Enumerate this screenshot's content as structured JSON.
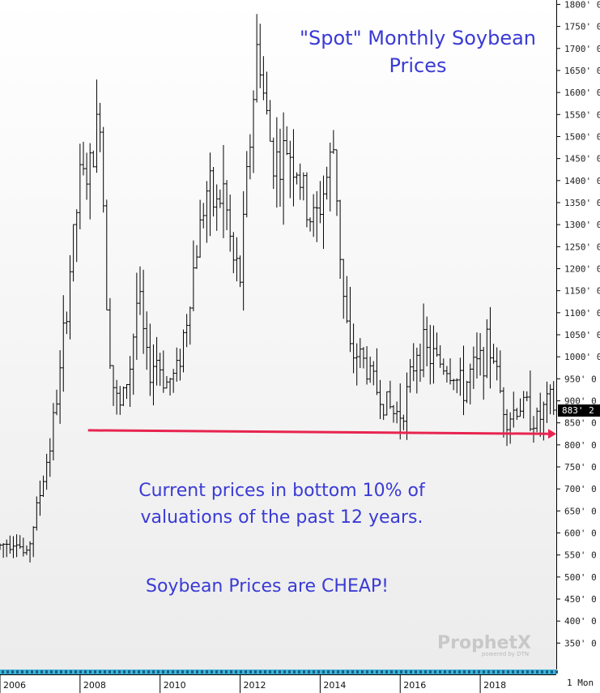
{
  "chart_data": {
    "type": "ohlc",
    "interval": "1 Mon",
    "title": "\"Spot\" Monthly Soybean Prices",
    "title_lines": [
      "\"Spot\" Monthly Soybean",
      "Prices"
    ],
    "annotations": [
      "Current prices in bottom 10% of",
      "valuations of the past 12 years.",
      "Soybean Prices are CHEAP!"
    ],
    "watermark": {
      "brand": "ProphetX",
      "tagline": "powered by DTN"
    },
    "last_price": 883.25,
    "last_price_label": "883' 2",
    "ylim": [
      290,
      1810
    ],
    "yticks": [
      350,
      400,
      450,
      500,
      550,
      600,
      650,
      700,
      750,
      800,
      850,
      900,
      950,
      1000,
      1050,
      1100,
      1150,
      1200,
      1250,
      1300,
      1350,
      1400,
      1450,
      1500,
      1550,
      1600,
      1650,
      1700,
      1750,
      1800
    ],
    "ytick_labels": [
      "350' 0",
      "400' 0",
      "450' 0",
      "500' 0",
      "550' 0",
      "600' 0",
      "650' 0",
      "700' 0",
      "750' 0",
      "800' 0",
      "850' 0",
      "900' 0",
      "950' 0",
      "1000' 0",
      "1050' 0",
      "1100' 0",
      "1150' 0",
      "1200' 0",
      "1250' 0",
      "1300' 0",
      "1350' 0",
      "1400' 0",
      "1450' 0",
      "1500' 0",
      "1550' 0",
      "1600' 0",
      "1650' 0",
      "1700' 0",
      "1750' 0",
      "1800' 0"
    ],
    "xlim": [
      2006.0,
      2019.9
    ],
    "xticks": [
      {
        "value": 2006,
        "label": "2006"
      },
      {
        "value": 2008,
        "label": "2008"
      },
      {
        "value": 2010,
        "label": "2010"
      },
      {
        "value": 2012,
        "label": "2012"
      },
      {
        "value": 2014,
        "label": "2014"
      },
      {
        "value": 2016,
        "label": "2016"
      },
      {
        "value": 2018,
        "label": "2018"
      }
    ],
    "support_line": {
      "start": {
        "x": 2008.2,
        "y": 833
      },
      "end": {
        "x": 2019.9,
        "y": 825
      },
      "color": "#e8244f"
    },
    "colors": {
      "bars": "#000000",
      "annotation_text": "#3a3ad6",
      "support_line": "#e8244f",
      "last_price_bg": "#000000"
    },
    "anchors": [
      [
        2006.0,
        570
      ],
      [
        2006.4,
        590
      ],
      [
        2006.65,
        540
      ],
      [
        2007.0,
        690
      ],
      [
        2007.25,
        800
      ],
      [
        2007.5,
        960
      ],
      [
        2007.75,
        1200
      ],
      [
        2008.0,
        1400
      ],
      [
        2008.25,
        1420
      ],
      [
        2008.5,
        1560
      ],
      [
        2008.7,
        1060
      ],
      [
        2008.85,
        920
      ],
      [
        2009.0,
        880
      ],
      [
        2009.25,
        980
      ],
      [
        2009.45,
        1150
      ],
      [
        2009.7,
        960
      ],
      [
        2009.9,
        1000
      ],
      [
        2010.15,
        940
      ],
      [
        2010.4,
        960
      ],
      [
        2010.65,
        1080
      ],
      [
        2010.9,
        1240
      ],
      [
        2011.15,
        1380
      ],
      [
        2011.4,
        1340
      ],
      [
        2011.6,
        1380
      ],
      [
        2011.8,
        1220
      ],
      [
        2012.0,
        1180
      ],
      [
        2012.2,
        1440
      ],
      [
        2012.45,
        1730
      ],
      [
        2012.6,
        1580
      ],
      [
        2012.8,
        1460
      ],
      [
        2013.0,
        1440
      ],
      [
        2013.2,
        1480
      ],
      [
        2013.45,
        1420
      ],
      [
        2013.7,
        1320
      ],
      [
        2013.9,
        1310
      ],
      [
        2014.2,
        1420
      ],
      [
        2014.35,
        1480
      ],
      [
        2014.55,
        1160
      ],
      [
        2014.75,
        1000
      ],
      [
        2014.95,
        1010
      ],
      [
        2015.2,
        970
      ],
      [
        2015.45,
        920
      ],
      [
        2015.7,
        890
      ],
      [
        2015.85,
        870
      ],
      [
        2016.05,
        880
      ],
      [
        2016.25,
        940
      ],
      [
        2016.4,
        1020
      ],
      [
        2016.55,
        1020
      ],
      [
        2016.75,
        1000
      ],
      [
        2016.95,
        990
      ],
      [
        2017.15,
        980
      ],
      [
        2017.35,
        960
      ],
      [
        2017.55,
        920
      ],
      [
        2017.75,
        960
      ],
      [
        2017.95,
        980
      ],
      [
        2018.1,
        1010
      ],
      [
        2018.3,
        1020
      ],
      [
        2018.5,
        920
      ],
      [
        2018.7,
        860
      ],
      [
        2018.85,
        880
      ],
      [
        2019.0,
        890
      ],
      [
        2019.2,
        880
      ],
      [
        2019.4,
        850
      ],
      [
        2019.55,
        870
      ],
      [
        2019.7,
        900
      ],
      [
        2019.85,
        883
      ]
    ]
  }
}
